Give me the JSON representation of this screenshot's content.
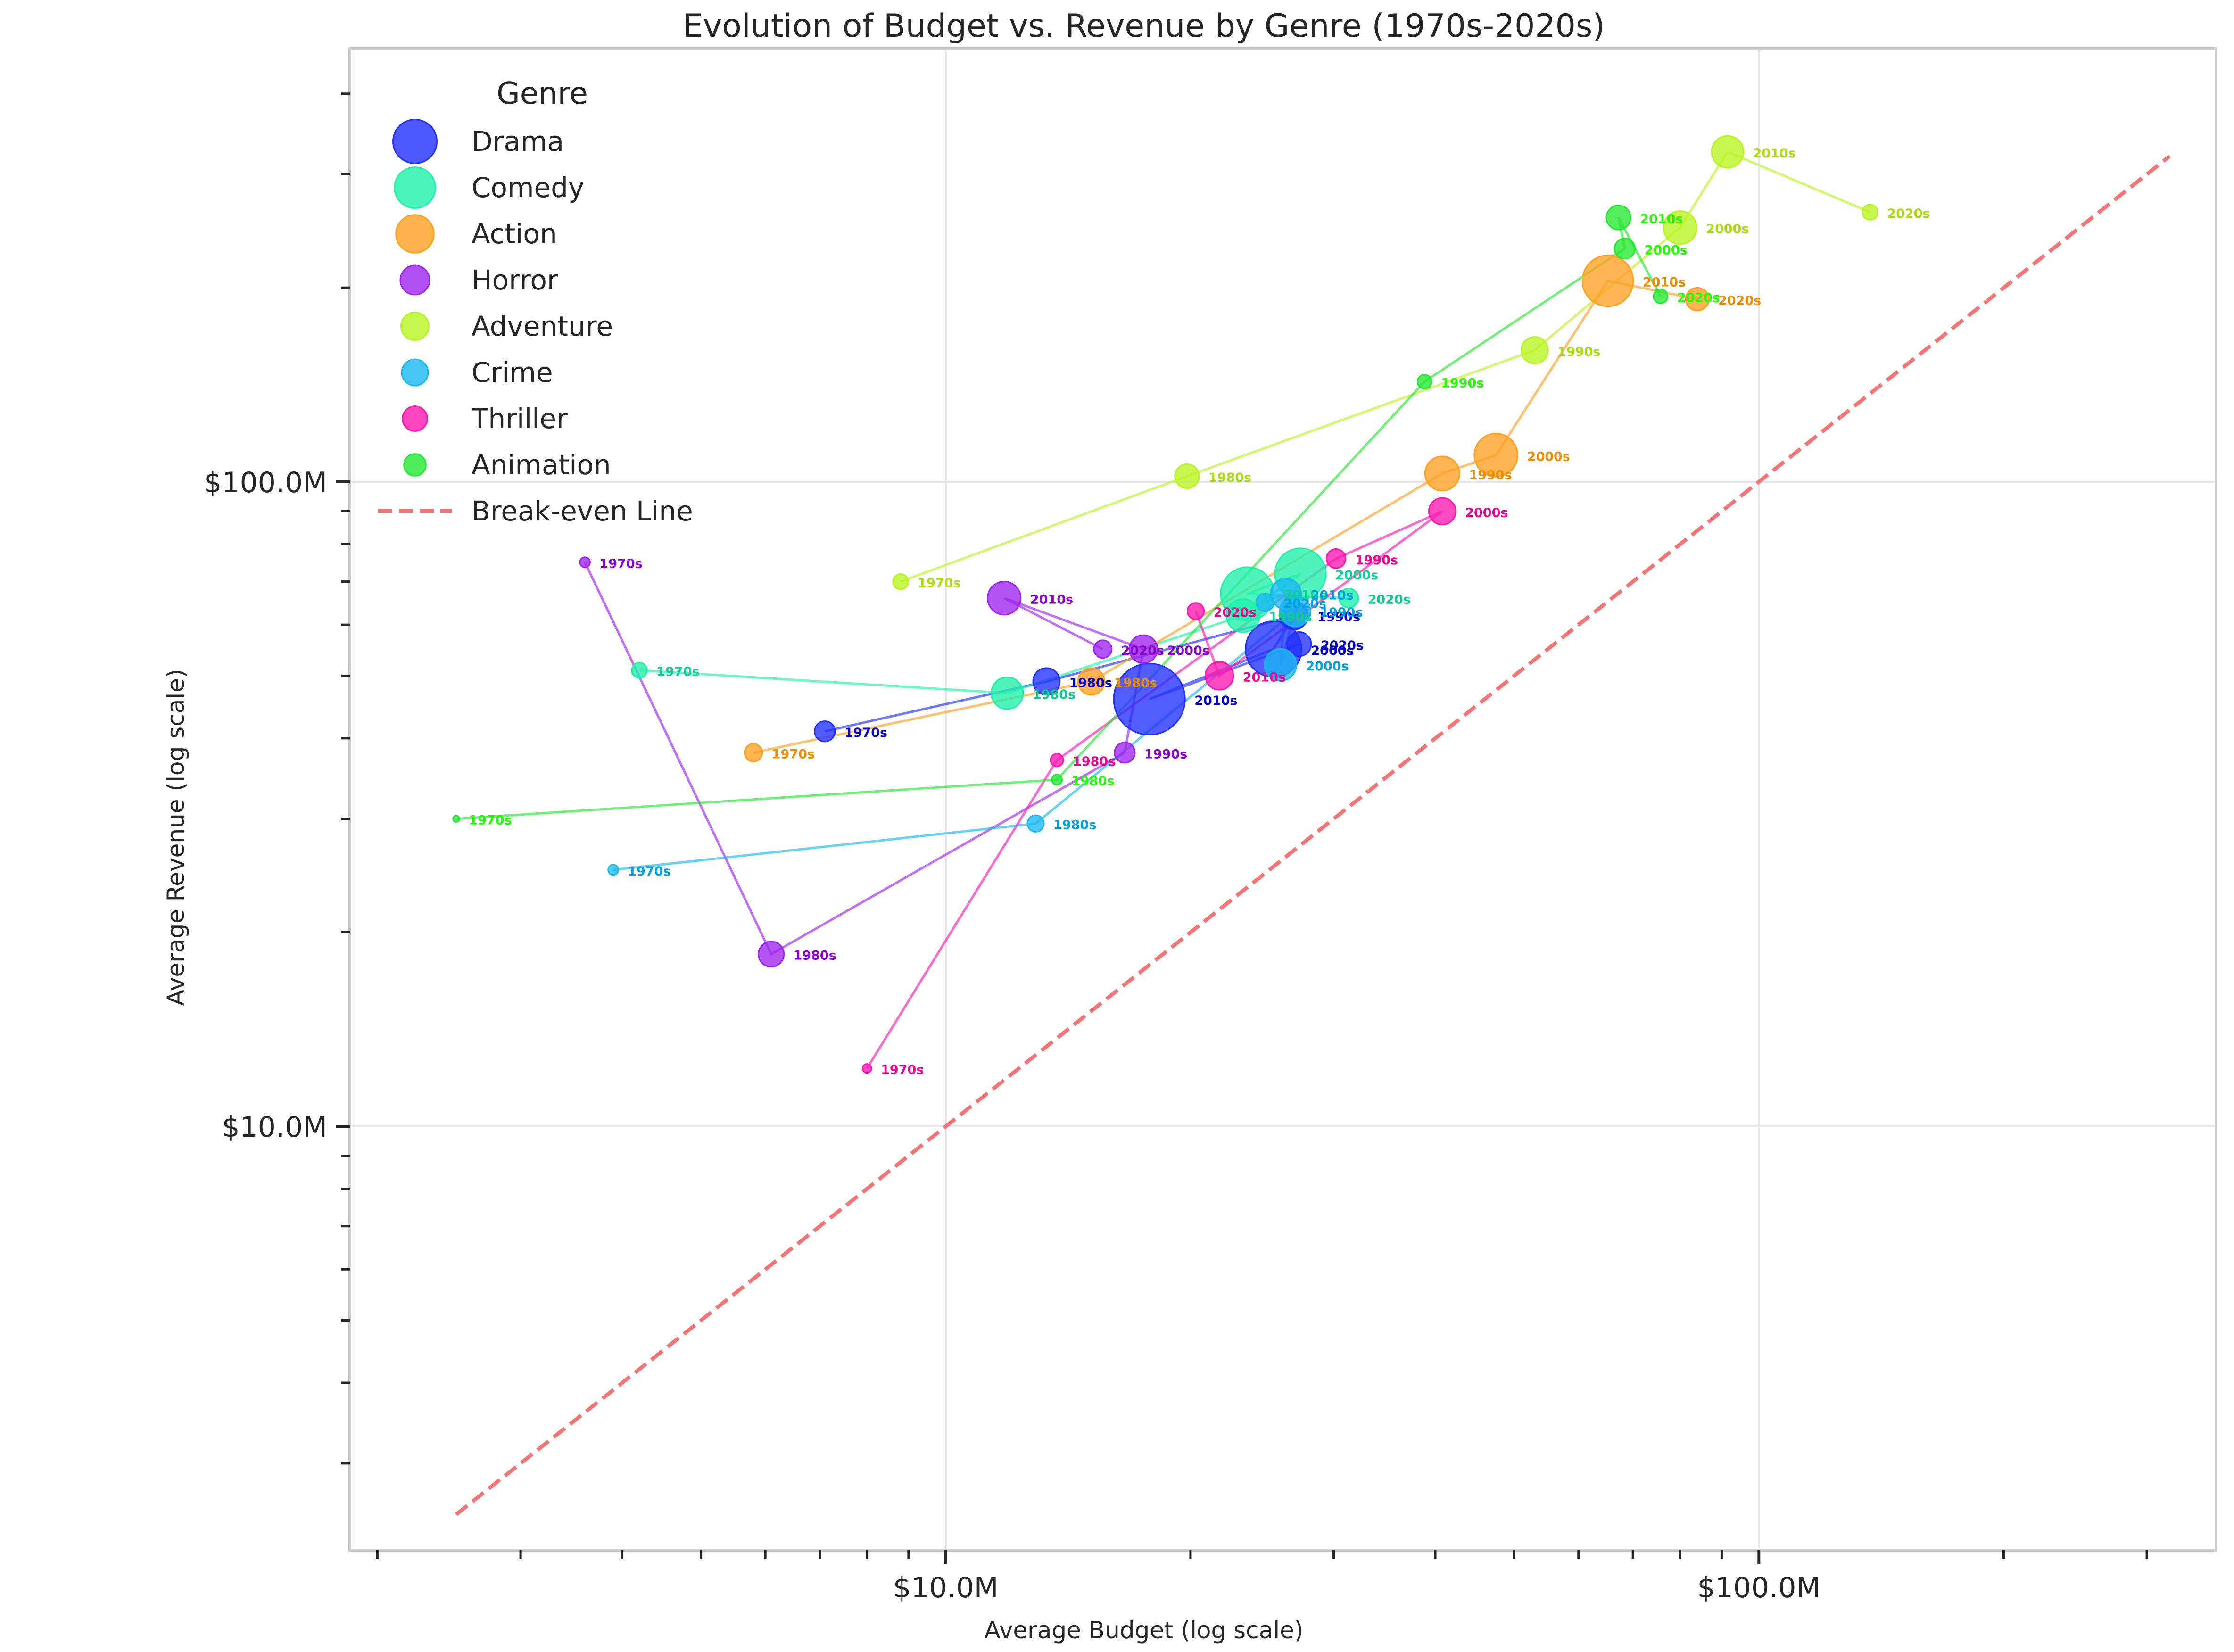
{
  "chart_data": {
    "type": "scatter",
    "title": "Evolution of Budget vs. Revenue by Genre (1970s-2020s)",
    "xlabel": "Average Budget (log scale)",
    "ylabel": "Average Revenue (log scale)",
    "x_scale": "log",
    "y_scale": "log",
    "xlim": [
      1.85,
      365
    ],
    "ylim": [
      2.2,
      470
    ],
    "x_ticks": [
      {
        "value": 10,
        "label": "$10.0M"
      },
      {
        "value": 100,
        "label": "$100.0M"
      }
    ],
    "y_ticks": [
      {
        "value": 10,
        "label": "$10.0M"
      },
      {
        "value": 100,
        "label": "$100.0M"
      }
    ],
    "grid": true,
    "legend": {
      "title": "Genre",
      "position": "top-left",
      "entries": [
        "Drama",
        "Comedy",
        "Action",
        "Horror",
        "Adventure",
        "Crime",
        "Thriller",
        "Animation",
        "Break-even Line"
      ]
    },
    "reference_line": {
      "name": "Break-even Line",
      "color": "#f87474",
      "from": 2.5,
      "to": 320
    },
    "series": [
      {
        "name": "Drama",
        "color": "#2030ff",
        "label_color": "#0000cc",
        "points": [
          {
            "decade": "1970s",
            "budget": 7.1,
            "revenue": 41,
            "size": 16
          },
          {
            "decade": "1980s",
            "budget": 13.3,
            "revenue": 49,
            "size": 21
          },
          {
            "decade": "1990s",
            "budget": 26.8,
            "revenue": 62,
            "size": 22
          },
          {
            "decade": "2000s",
            "budget": 25.3,
            "revenue": 55,
            "size": 44
          },
          {
            "decade": "2010s",
            "budget": 17.8,
            "revenue": 46,
            "size": 56
          },
          {
            "decade": "2020s",
            "budget": 27.2,
            "revenue": 56,
            "size": 19
          }
        ]
      },
      {
        "name": "Comedy",
        "color": "#1ef1aa",
        "label_color": "#10cc90",
        "points": [
          {
            "decade": "1970s",
            "budget": 4.2,
            "revenue": 51,
            "size": 12
          },
          {
            "decade": "1980s",
            "budget": 11.9,
            "revenue": 47,
            "size": 25
          },
          {
            "decade": "1990s",
            "budget": 23.2,
            "revenue": 62,
            "size": 26
          },
          {
            "decade": "2000s",
            "budget": 27.3,
            "revenue": 72,
            "size": 40
          },
          {
            "decade": "2010s",
            "budget": 23.5,
            "revenue": 67,
            "size": 42
          },
          {
            "decade": "2020s",
            "budget": 31.3,
            "revenue": 66,
            "size": 15
          }
        ]
      },
      {
        "name": "Action",
        "color": "#ffa020",
        "label_color": "#ee8c00",
        "points": [
          {
            "decade": "1970s",
            "budget": 5.8,
            "revenue": 38,
            "size": 14
          },
          {
            "decade": "1980s",
            "budget": 15.1,
            "revenue": 49,
            "size": 21
          },
          {
            "decade": "1990s",
            "budget": 40.8,
            "revenue": 103,
            "size": 27
          },
          {
            "decade": "2000s",
            "budget": 47.5,
            "revenue": 110,
            "size": 34
          },
          {
            "decade": "2010s",
            "budget": 65.2,
            "revenue": 205,
            "size": 40
          },
          {
            "decade": "2020s",
            "budget": 84,
            "revenue": 192,
            "size": 18
          }
        ]
      },
      {
        "name": "Horror",
        "color": "#9d24f0",
        "label_color": "#8a00d2",
        "points": [
          {
            "decade": "1970s",
            "budget": 3.6,
            "revenue": 75,
            "size": 8
          },
          {
            "decade": "1980s",
            "budget": 6.1,
            "revenue": 18.5,
            "size": 20
          },
          {
            "decade": "1990s",
            "budget": 16.6,
            "revenue": 38,
            "size": 16
          },
          {
            "decade": "2000s",
            "budget": 17.5,
            "revenue": 55,
            "size": 22
          },
          {
            "decade": "2010s",
            "budget": 11.8,
            "revenue": 66,
            "size": 26
          },
          {
            "decade": "2020s",
            "budget": 15.6,
            "revenue": 55,
            "size": 14
          }
        ]
      },
      {
        "name": "Adventure",
        "color": "#b8f520",
        "label_color": "#aadd10",
        "points": [
          {
            "decade": "1970s",
            "budget": 8.8,
            "revenue": 70,
            "size": 12
          },
          {
            "decade": "1980s",
            "budget": 19.8,
            "revenue": 102,
            "size": 19
          },
          {
            "decade": "1990s",
            "budget": 53,
            "revenue": 160,
            "size": 21
          },
          {
            "decade": "2000s",
            "budget": 80,
            "revenue": 248,
            "size": 26
          },
          {
            "decade": "2010s",
            "budget": 91.5,
            "revenue": 325,
            "size": 25
          },
          {
            "decade": "2020s",
            "budget": 137,
            "revenue": 262,
            "size": 12
          }
        ]
      },
      {
        "name": "Crime",
        "color": "#18b8f0",
        "label_color": "#00a0e0",
        "points": [
          {
            "decade": "1970s",
            "budget": 3.9,
            "revenue": 25,
            "size": 8
          },
          {
            "decade": "1980s",
            "budget": 12.9,
            "revenue": 29.5,
            "size": 13
          },
          {
            "decade": "1990s",
            "budget": 26.9,
            "revenue": 63,
            "size": 24
          },
          {
            "decade": "2000s",
            "budget": 25.8,
            "revenue": 52,
            "size": 25
          },
          {
            "decade": "2010s",
            "budget": 26.2,
            "revenue": 67,
            "size": 24
          },
          {
            "decade": "2020s",
            "budget": 24.7,
            "revenue": 65,
            "size": 14
          }
        ]
      },
      {
        "name": "Thriller",
        "color": "#ff18b0",
        "label_color": "#ee0090",
        "points": [
          {
            "decade": "1970s",
            "budget": 8.0,
            "revenue": 12.3,
            "size": 7
          },
          {
            "decade": "1980s",
            "budget": 13.7,
            "revenue": 37,
            "size": 10
          },
          {
            "decade": "1990s",
            "budget": 30.2,
            "revenue": 76,
            "size": 15
          },
          {
            "decade": "2000s",
            "budget": 40.8,
            "revenue": 90,
            "size": 21
          },
          {
            "decade": "2010s",
            "budget": 21.7,
            "revenue": 50,
            "size": 22
          },
          {
            "decade": "2020s",
            "budget": 20.3,
            "revenue": 63,
            "size": 13
          }
        ]
      },
      {
        "name": "Animation",
        "color": "#22e830",
        "label_color": "#22ff00",
        "points": [
          {
            "decade": "1970s",
            "budget": 2.5,
            "revenue": 30,
            "size": 5
          },
          {
            "decade": "1980s",
            "budget": 13.7,
            "revenue": 34.5,
            "size": 8
          },
          {
            "decade": "1990s",
            "budget": 38.8,
            "revenue": 143,
            "size": 11
          },
          {
            "decade": "2000s",
            "budget": 68.4,
            "revenue": 230,
            "size": 16
          },
          {
            "decade": "2010s",
            "budget": 67.2,
            "revenue": 257,
            "size": 19
          },
          {
            "decade": "2020s",
            "budget": 75.7,
            "revenue": 194,
            "size": 11
          }
        ]
      }
    ]
  }
}
